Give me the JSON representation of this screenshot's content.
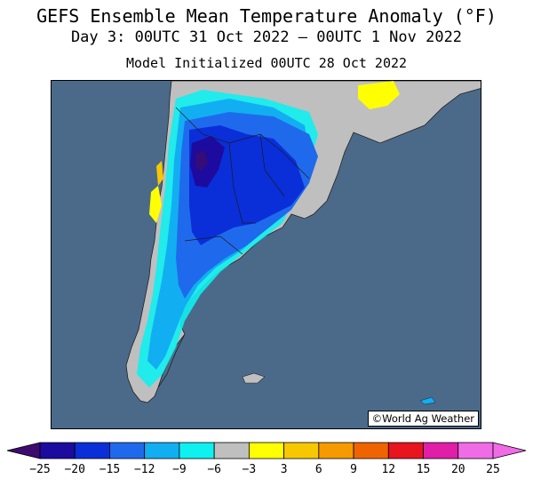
{
  "header": {
    "title": "GEFS Ensemble Mean Temperature Anomaly (°F)",
    "valid": "Day 3: 00UTC 31 Oct 2022 — 00UTC 1 Nov 2022",
    "init": "Model Initialized 00UTC 28 Oct 2022"
  },
  "map": {
    "region": "Southern South America",
    "credit": "©World Ag Weather",
    "ocean_color": "#4b6a8a",
    "land_color": "#bfbfbf"
  },
  "legend": {
    "ticks": [
      "−25",
      "−20",
      "−15",
      "−12",
      "−9",
      "−6",
      "−3",
      "3",
      "6",
      "9",
      "12",
      "15",
      "20",
      "25"
    ],
    "colors": [
      "#3d0c6e",
      "#1c0b9e",
      "#0a2fd8",
      "#1f6aec",
      "#12aef2",
      "#0ff0f0",
      "#bfbfbf",
      "#ffff00",
      "#f7c700",
      "#f59a00",
      "#f06400",
      "#e8141e",
      "#e01ea8",
      "#f06ce6"
    ]
  }
}
